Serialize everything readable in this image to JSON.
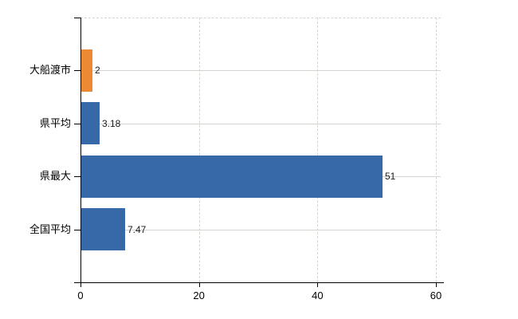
{
  "chart_data": {
    "type": "bar",
    "orientation": "horizontal",
    "title": "",
    "xlabel": "",
    "ylabel": "",
    "categories": [
      "大船渡市",
      "県平均",
      "県最大",
      "全国平均"
    ],
    "values": [
      2,
      3.18,
      51,
      7.47
    ],
    "value_labels": [
      "2",
      "3.18",
      "51",
      "7.47"
    ],
    "bar_colors": [
      "#EB8A32",
      "#3769A8",
      "#3769A8",
      "#3769A8"
    ],
    "x_ticks": [
      0,
      20,
      40,
      60
    ],
    "x_tick_labels": [
      "0",
      "20",
      "40",
      "60"
    ],
    "xlim": [
      0,
      60
    ],
    "grid": true,
    "legend": false,
    "colors": {
      "bar_default": "#3769A8",
      "bar_highlight": "#EB8A32",
      "gridline": "#D5D5D0",
      "axis": "#000000",
      "text": "#000000",
      "background": "#FFFFFF"
    }
  }
}
